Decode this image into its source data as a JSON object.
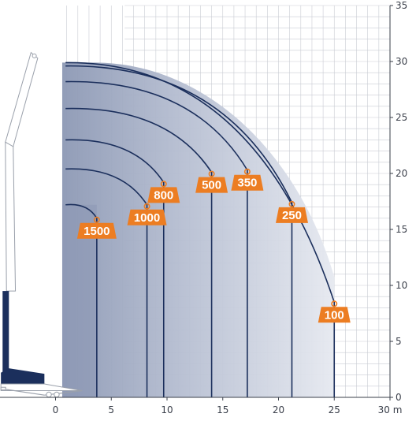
{
  "chart_data": {
    "type": "area",
    "title": "",
    "xlabel": "",
    "ylabel": "",
    "x_unit": "m",
    "xlim": [
      -5,
      30
    ],
    "ylim": [
      0,
      35
    ],
    "x_ticks": [
      0,
      5,
      10,
      15,
      20,
      25,
      30
    ],
    "x_tick_labels": [
      "0",
      "5",
      "10",
      "15",
      "20",
      "25",
      "30 m"
    ],
    "y_ticks": [
      0,
      5,
      10,
      15,
      20,
      25,
      30,
      35
    ],
    "y_tick_labels": [
      "0",
      "5",
      "10",
      "15",
      "20",
      "25",
      "30",
      "35"
    ],
    "grid": true,
    "loads": [
      {
        "label": "1500",
        "radius": 3.7,
        "peak_height": 17.2,
        "max_height_at_radius": 16.0
      },
      {
        "label": "1000",
        "radius": 8.2,
        "peak_height": 20.4,
        "max_height_at_radius": 17.2
      },
      {
        "label": "800",
        "radius": 9.7,
        "peak_height": 23.0,
        "max_height_at_radius": 19.2
      },
      {
        "label": "500",
        "radius": 14.0,
        "peak_height": 25.8,
        "max_height_at_radius": 20.1
      },
      {
        "label": "350",
        "radius": 17.2,
        "peak_height": 28.2,
        "max_height_at_radius": 20.3
      },
      {
        "label": "250",
        "radius": 21.2,
        "peak_height": 29.6,
        "max_height_at_radius": 17.4
      },
      {
        "label": "100",
        "radius": 25.0,
        "peak_height": 29.9,
        "max_height_at_radius": 8.5
      }
    ],
    "colors": {
      "curve": "#1b2f5c",
      "label_fill": "#ec7d22",
      "label_text": "#ffffff",
      "grid": "#c9ccd3",
      "axis": "#3a3f4a",
      "fill_dark": "#8c98b4",
      "fill_light": "#e6e9f0",
      "crane_dark": "#1b2f5c",
      "crane_outline": "#9aa0ab"
    }
  }
}
